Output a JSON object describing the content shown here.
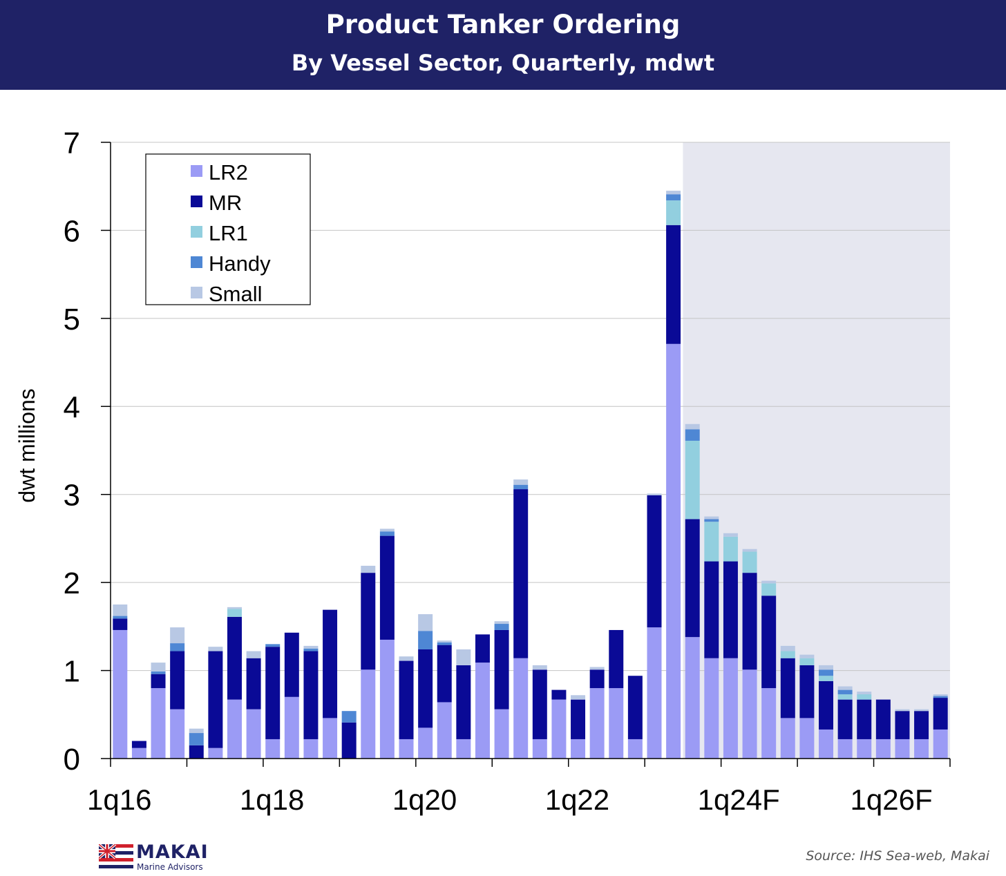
{
  "header": {
    "title": "Product Tanker Ordering",
    "subtitle": "By Vessel Sector, Quarterly, mdwt"
  },
  "footer": {
    "logo_name": "MAKAI",
    "logo_sub": "Marine Advisors",
    "source": "Source: IHS Sea-web, Makai"
  },
  "colors": {
    "header_bg": "#1f2266",
    "forecast_shade": "#e6e7f0",
    "LR2": "#9b9bf5",
    "MR": "#0a0a96",
    "LR1": "#92cfdf",
    "Handy": "#4e87d4",
    "Small": "#b8c8e4"
  },
  "chart_data": {
    "type": "bar",
    "stacked": true,
    "title": "Product Tanker Ordering",
    "subtitle": "By Vessel Sector, Quarterly, mdwt",
    "xlabel": "",
    "ylabel": "dwt millions",
    "ylim": [
      0,
      7
    ],
    "yticks": [
      0,
      1,
      2,
      3,
      4,
      5,
      6,
      7
    ],
    "grid": true,
    "legend_position": "top-left",
    "forecast_shaded_from": "3q23",
    "x_tick_labels": [
      "1q16",
      "1q18",
      "1q20",
      "1q22",
      "1q24F",
      "1q26F"
    ],
    "categories": [
      "1q16",
      "2q16",
      "3q16",
      "4q16",
      "1q17",
      "2q17",
      "3q17",
      "4q17",
      "1q18",
      "2q18",
      "3q18",
      "4q18",
      "1q19",
      "2q19",
      "3q19",
      "4q19",
      "1q20",
      "2q20",
      "3q20",
      "4q20",
      "1q21",
      "2q21",
      "3q21",
      "4q21",
      "1q22",
      "2q22",
      "3q22",
      "4q22",
      "1q23",
      "2q23",
      "3q23",
      "4q23",
      "1q24F",
      "2q24F",
      "3q24F",
      "4q24F",
      "1q25F",
      "2q25F",
      "3q25F",
      "4q25F",
      "1q26F",
      "2q26F",
      "3q26F",
      "4q26F"
    ],
    "series": [
      {
        "name": "LR2",
        "values": [
          1.46,
          0.12,
          0.8,
          0.56,
          0,
          0.12,
          0.67,
          0.56,
          0.22,
          0.7,
          0.22,
          0.46,
          0,
          1.01,
          1.35,
          0.22,
          0.35,
          0.64,
          0.22,
          1.09,
          0.56,
          1.14,
          0.22,
          0.67,
          0.22,
          0.8,
          0.8,
          0.22,
          1.49,
          4.71,
          1.38,
          1.14,
          1.14,
          1.01,
          0.8,
          0.46,
          0.46,
          0.33,
          0.22,
          0.22,
          0.22,
          0.22,
          0.22,
          0.33
        ]
      },
      {
        "name": "MR",
        "values": [
          0.13,
          0.08,
          0.16,
          0.66,
          0.15,
          1.1,
          0.94,
          0.58,
          1.05,
          0.73,
          1.0,
          1.23,
          0.41,
          1.1,
          1.18,
          0.89,
          0.89,
          0.65,
          0.84,
          0.32,
          0.9,
          1.92,
          0.79,
          0.11,
          0.45,
          0.21,
          0.66,
          0.72,
          1.5,
          1.35,
          1.34,
          1.1,
          1.1,
          1.1,
          1.05,
          0.68,
          0.6,
          0.55,
          0.45,
          0.45,
          0.45,
          0.32,
          0.32,
          0.36
        ]
      },
      {
        "name": "LR1",
        "values": [
          0,
          0,
          0,
          0,
          0,
          0,
          0.09,
          0,
          0,
          0,
          0,
          0,
          0,
          0,
          0,
          0,
          0,
          0,
          0,
          0,
          0,
          0,
          0,
          0,
          0,
          0,
          0,
          0,
          0,
          0.28,
          0.89,
          0.45,
          0.28,
          0.24,
          0.14,
          0.08,
          0.08,
          0.06,
          0.06,
          0.06,
          0,
          0,
          0,
          0
        ]
      },
      {
        "name": "Handy",
        "values": [
          0.03,
          0,
          0.03,
          0.09,
          0.14,
          0,
          0,
          0,
          0.03,
          0,
          0.03,
          0,
          0.13,
          0,
          0.05,
          0,
          0.21,
          0.03,
          0,
          0,
          0.07,
          0.05,
          0,
          0,
          0,
          0,
          0,
          0,
          0,
          0.07,
          0.13,
          0.03,
          0,
          0,
          0,
          0,
          0,
          0.07,
          0.05,
          0,
          0,
          0,
          0,
          0.02
        ]
      },
      {
        "name": "Small",
        "values": [
          0.13,
          0,
          0.1,
          0.18,
          0.05,
          0.05,
          0.02,
          0.08,
          0,
          0,
          0.03,
          0,
          0,
          0.08,
          0.03,
          0.05,
          0.19,
          0.02,
          0.18,
          0,
          0.03,
          0.06,
          0.05,
          0,
          0.05,
          0.03,
          0,
          0,
          0.02,
          0.04,
          0.06,
          0.03,
          0.04,
          0.03,
          0.03,
          0.06,
          0.04,
          0.05,
          0.04,
          0.03,
          0,
          0.02,
          0.02,
          0.02
        ]
      }
    ]
  }
}
